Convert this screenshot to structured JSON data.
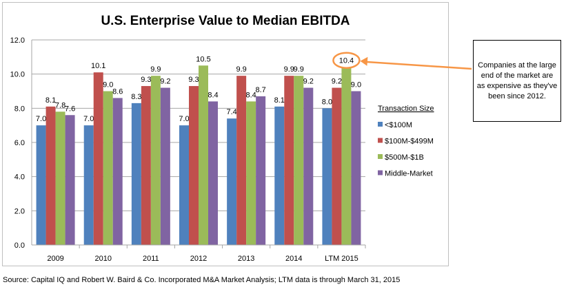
{
  "chart_data": {
    "type": "bar",
    "title": "U.S. Enterprise Value to Median EBITDA",
    "categories": [
      "2009",
      "2010",
      "2011",
      "2012",
      "2013",
      "2014",
      "LTM 2015"
    ],
    "ylim": [
      0,
      12
    ],
    "yticks": [
      "0.0",
      "2.0",
      "4.0",
      "6.0",
      "8.0",
      "10.0",
      "12.0"
    ],
    "grid": true,
    "legend_title": "Transaction Size",
    "legend_position": "right",
    "series": [
      {
        "name": "<$100M",
        "color": "#4F81BD",
        "values": [
          7.0,
          7.0,
          8.3,
          7.0,
          7.4,
          8.1,
          8.0
        ]
      },
      {
        "name": "$100M-$499M",
        "color": "#C0504D",
        "values": [
          8.1,
          10.1,
          9.3,
          9.3,
          9.9,
          9.9,
          9.2
        ]
      },
      {
        "name": "$500M-$1B",
        "color": "#9BBB59",
        "values": [
          7.8,
          9.0,
          9.9,
          10.5,
          8.4,
          9.9,
          10.4
        ]
      },
      {
        "name": "Middle-Market",
        "color": "#8064A2",
        "values": [
          7.6,
          8.6,
          9.2,
          8.4,
          8.7,
          9.2,
          9.0
        ]
      }
    ],
    "highlight": {
      "category": "LTM 2015",
      "series": "$500M-$1B",
      "color": "#F79646"
    }
  },
  "callout": "Companies at the large end of the market are as expensive as they've been since 2012.",
  "source": "Source: Capital IQ and Robert W. Baird & Co. Incorporated M&A Market Analysis; LTM data is through March 31, 2015"
}
